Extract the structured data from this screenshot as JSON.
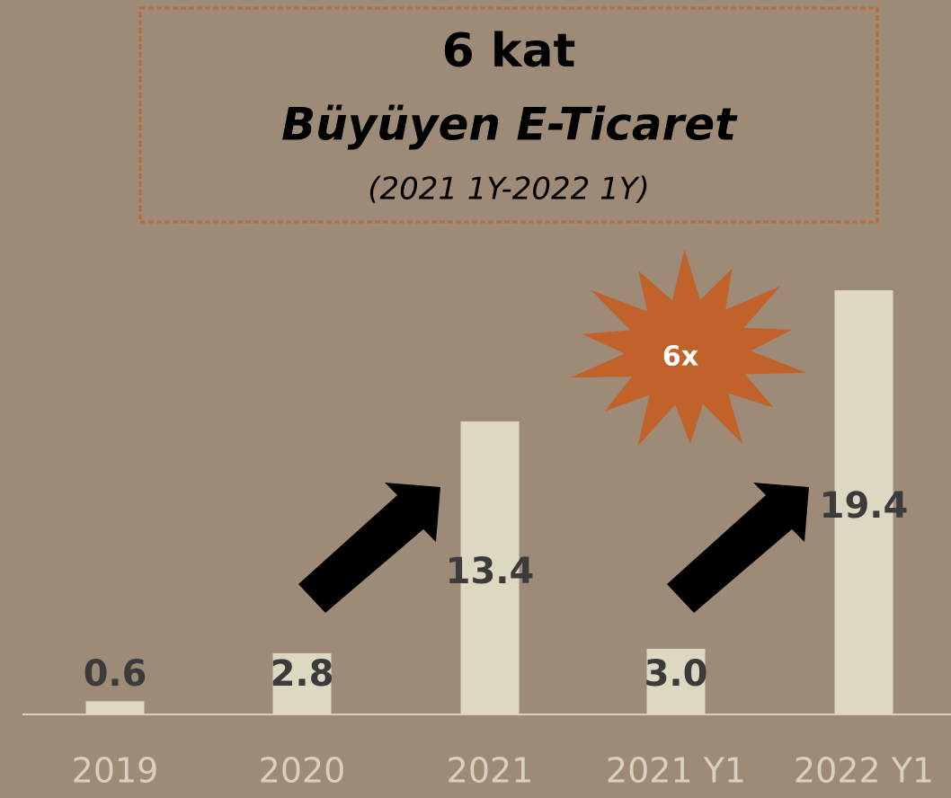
{
  "chart_data": {
    "type": "bar",
    "title": "6 kat",
    "subtitle": "Büyüyen E-Ticaret",
    "annotations": [
      "(2021 1Y-2022 1Y)",
      "6x"
    ],
    "categories": [
      "2019",
      "2020",
      "2021",
      "2021 Y1",
      "2022 Y1"
    ],
    "values": [
      0.6,
      2.8,
      13.4,
      3.0,
      19.4
    ],
    "value_labels": [
      "0.6",
      "2.8",
      "13.4",
      "3.0",
      "19.4"
    ],
    "color": "#ddd8c2"
  }
}
